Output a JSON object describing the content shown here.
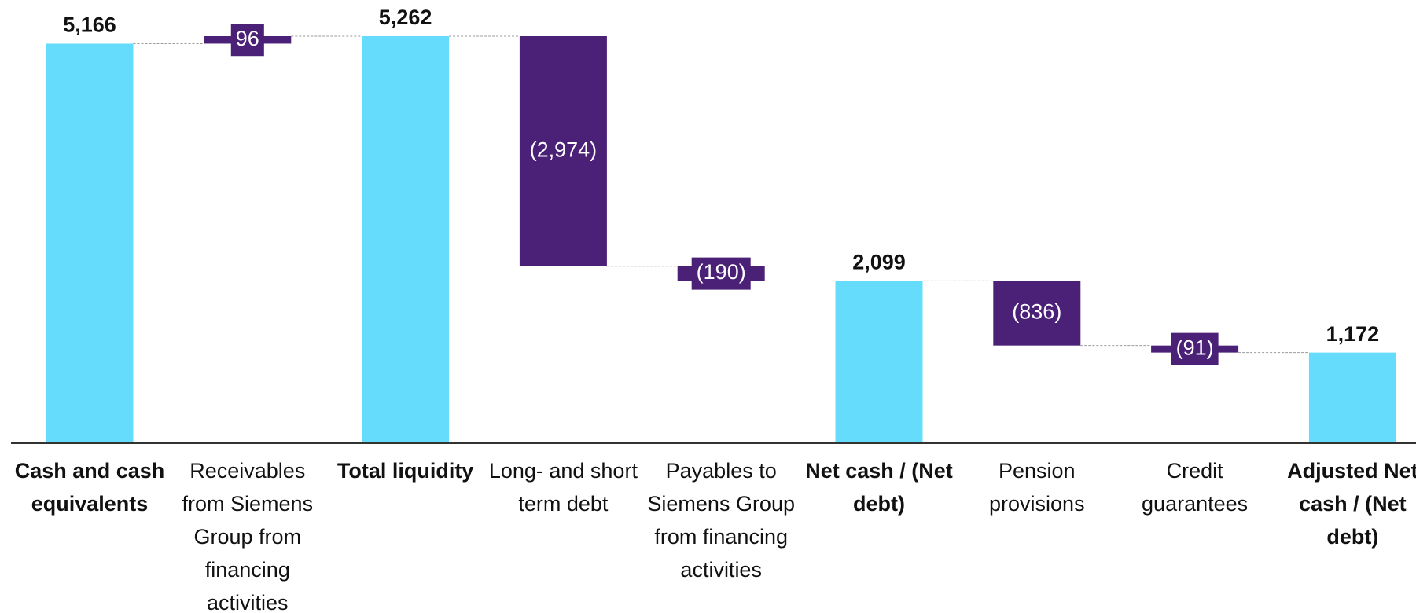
{
  "chart_data": {
    "type": "waterfall",
    "categories": [
      "Cash and cash equivalents",
      "Receivables from Siemens Group from financing activities",
      "Total liquidity",
      "Long- and short term debt",
      "Payables to Siemens Group from financing activities",
      "Net cash / (Net debt)",
      "Pension provisions",
      "Credit guarantees",
      "Adjusted Net cash / (Net debt)"
    ],
    "values": [
      5166,
      96,
      5262,
      -2974,
      -190,
      2099,
      -836,
      -91,
      1172
    ],
    "value_labels": [
      "5,166",
      "96",
      "5,262",
      "(2,974)",
      "(190)",
      "2,099",
      "(836)",
      "(91)",
      "1,172"
    ],
    "totals": [
      true,
      false,
      true,
      false,
      false,
      true,
      false,
      false,
      true
    ],
    "total_color": "#66dcfd",
    "delta_color": "#4b2177"
  }
}
